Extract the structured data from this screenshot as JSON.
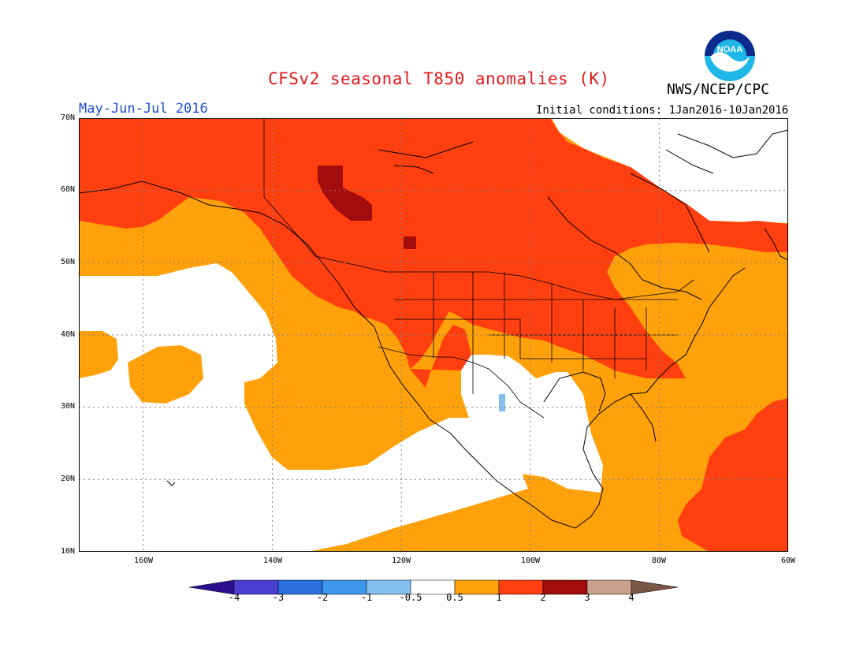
{
  "title": "CFSv2 seasonal T850 anomalies (K)",
  "agency": "NWS/NCEP/CPC",
  "logo_text": "NOAA",
  "period": "May-Jun-Jul 2016",
  "initial_conditions": "Initial conditions: 1Jan2016-10Jan2016",
  "lat_labels": [
    "70N",
    "60N",
    "50N",
    "40N",
    "30N",
    "20N",
    "10N"
  ],
  "lon_labels": [
    "160W",
    "140W",
    "120W",
    "100W",
    "80W",
    "60W"
  ],
  "colorbar": {
    "labels": [
      "-4",
      "-3",
      "-2",
      "-1",
      "-0.5",
      "0.5",
      "1",
      "2",
      "3",
      "4"
    ],
    "colors": [
      "#2b0f8f",
      "#4a3fd1",
      "#2a6fdc",
      "#3e95ec",
      "#83bff1",
      "#ffffff",
      "#ffa10a",
      "#ff3f0f",
      "#a30c0c",
      "#c8a08c",
      "#7a5646"
    ]
  },
  "anomaly_colors": {
    "near_zero": "#ffffff",
    "0.5_to_1": "#ffa10a",
    "1_to_2": "#ff3f0f",
    "2_to_3": "#a30c0c",
    "-1_to_-0.5": "#83bff1"
  }
}
